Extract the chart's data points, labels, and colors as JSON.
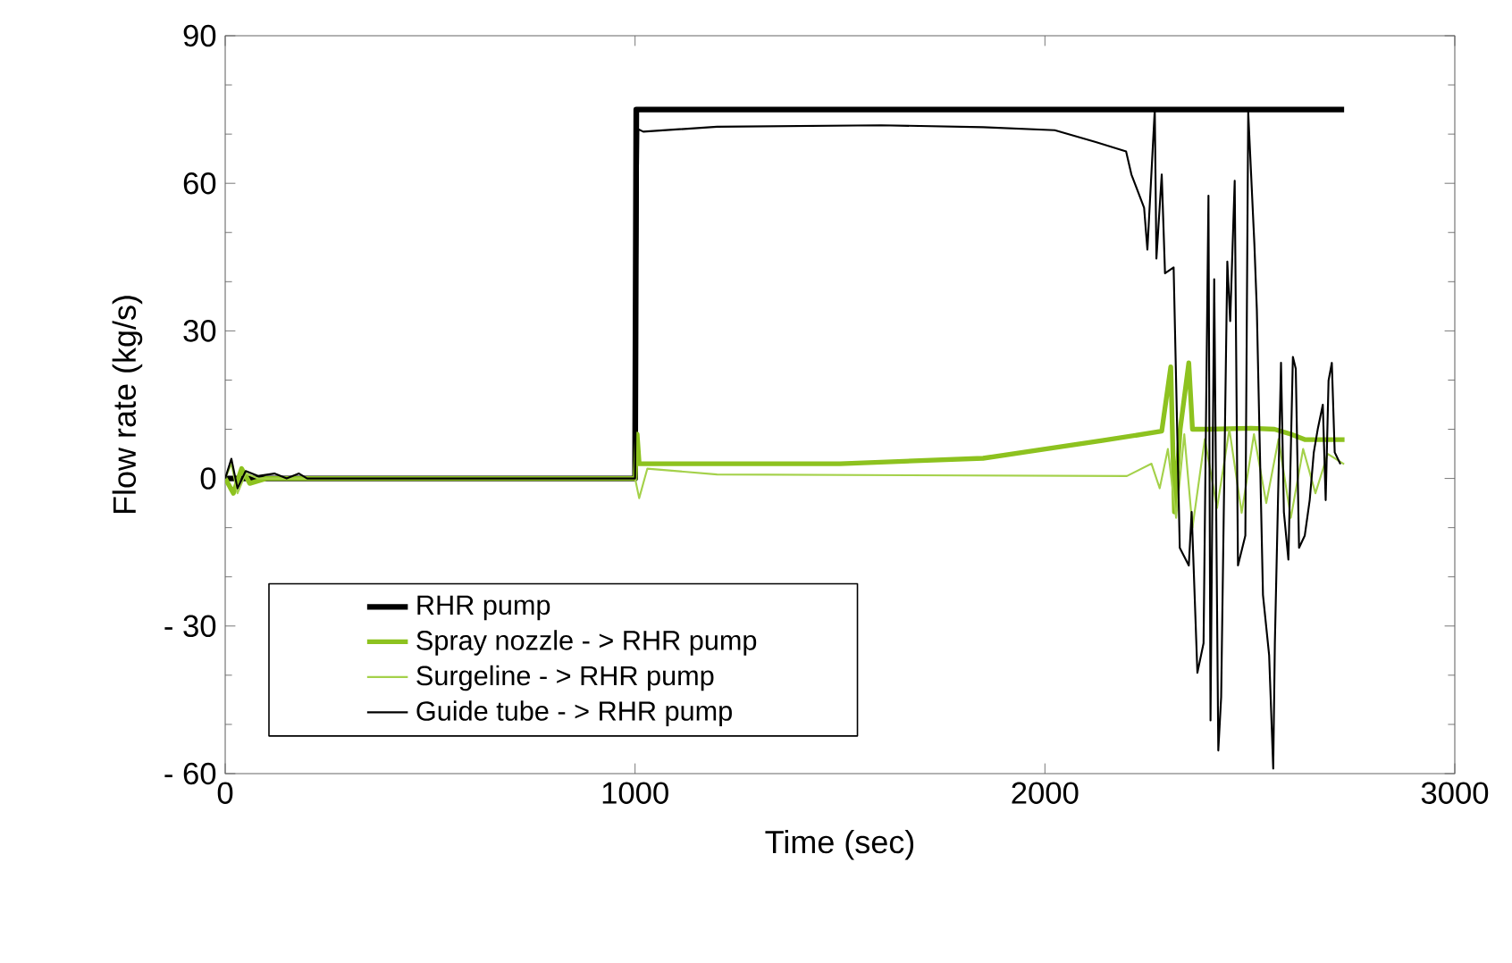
{
  "chart_data": {
    "type": "line",
    "xlabel": "Time (sec)",
    "ylabel": "Flow rate (kg/s)",
    "xlim": [
      0,
      3000
    ],
    "xticks": [
      0,
      1000,
      2000,
      3000
    ],
    "ylim": [
      -60,
      90
    ],
    "yticks": [
      {
        "value": -60,
        "label": "- 60"
      },
      {
        "value": -30,
        "label": "- 30"
      },
      0,
      30,
      60,
      90
    ],
    "grid": false,
    "legend": "bottom left",
    "marker": "none",
    "line_style": "solid",
    "series": [
      {
        "name": "RHR pump",
        "color": "#000000",
        "x": [
          0,
          1000,
          1003,
          2730
        ],
        "values": [
          0,
          0,
          75,
          75
        ]
      },
      {
        "name": "Spray nozzle  - > RHR pump",
        "color": "#8dc21f",
        "x": [
          0,
          20,
          40,
          60,
          100,
          200,
          1000,
          1005,
          1010,
          1020,
          1500,
          1849,
          2140,
          2285,
          2307,
          2316,
          2330,
          2351,
          2360,
          2400,
          2503,
          2560,
          2600,
          2634,
          2731
        ],
        "values": [
          0,
          -3,
          2,
          -1,
          0,
          0,
          0,
          9,
          3,
          3,
          3,
          4.1,
          7.7,
          9.6,
          22.7,
          -6.8,
          10,
          23.5,
          10,
          10,
          10.2,
          10,
          9,
          7.9,
          7.9
        ]
      },
      {
        "name": "Surgeline  - > RHR pump",
        "color": "#a4d14a",
        "x": [
          0,
          15,
          30,
          50,
          80,
          200,
          1000,
          1010,
          1030,
          1200,
          2200,
          2260,
          2280,
          2300,
          2320,
          2340,
          2360,
          2390,
          2420,
          2450,
          2480,
          2510,
          2540,
          2570,
          2600,
          2630,
          2660,
          2690,
          2730
        ],
        "values": [
          0,
          3,
          -3,
          1,
          0,
          0,
          0,
          -4,
          2,
          0.8,
          0.5,
          3,
          -2,
          6,
          -8,
          9,
          -10,
          8,
          -6,
          10,
          -7,
          9,
          -5,
          8,
          -8,
          6,
          -3,
          5,
          2.9
        ]
      },
      {
        "name": "Guide tube  - > RHR pump",
        "color": "#000000",
        "x": [
          0,
          15,
          30,
          50,
          80,
          120,
          150,
          180,
          200,
          1000,
          1008,
          1020,
          1200,
          1600,
          1849,
          2024,
          2124,
          2198,
          2211,
          2242,
          2250,
          2268,
          2272,
          2285,
          2293,
          2314,
          2329,
          2351,
          2358,
          2372,
          2387,
          2399,
          2404,
          2413,
          2423,
          2430,
          2445,
          2452,
          2463,
          2471,
          2489,
          2496,
          2511,
          2517,
          2532,
          2547,
          2557,
          2561,
          2576,
          2583,
          2594,
          2605,
          2612,
          2620,
          2634,
          2646,
          2656,
          2666,
          2678,
          2685,
          2692,
          2700,
          2707,
          2721
        ],
        "values": [
          0,
          4,
          -2,
          1.5,
          0.5,
          1,
          0,
          1,
          0,
          0,
          71,
          70.5,
          71.5,
          71.8,
          71.4,
          70.8,
          68.4,
          66.5,
          61.8,
          55,
          46.5,
          75,
          44.7,
          61.8,
          41.7,
          42.9,
          -14.1,
          -17.7,
          -6.8,
          -39.5,
          -33.5,
          57.5,
          -49.2,
          40.5,
          -55.3,
          -44.4,
          44.1,
          32,
          60.5,
          -17.7,
          -11.6,
          74.4,
          47.7,
          34.4,
          -23.7,
          -35.9,
          -59,
          -33.5,
          23.5,
          -6.8,
          -16.5,
          24.7,
          22.3,
          -14.1,
          -11.6,
          -4.4,
          5.3,
          10.2,
          15,
          -4.4,
          19.9,
          23.5,
          5.3,
          2.9
        ]
      }
    ]
  }
}
